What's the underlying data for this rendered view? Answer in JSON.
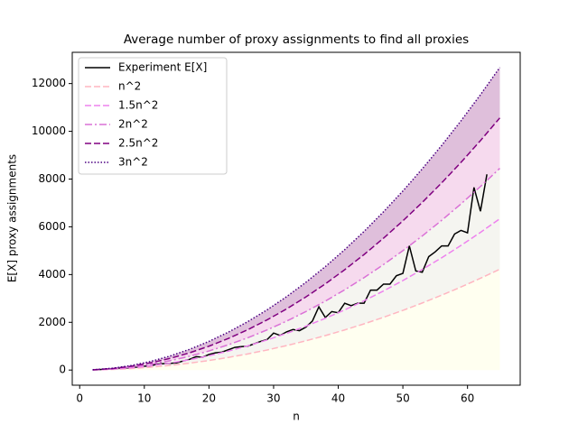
{
  "chart_data": {
    "type": "line",
    "title": "Average number of proxy assignments to find all proxies",
    "x_label": "n",
    "y_label": "E[X] proxy assignments",
    "xlim": [
      -1.15,
      68.15
    ],
    "xticks": [
      0,
      10,
      20,
      30,
      40,
      50,
      60
    ],
    "ylim": [
      -634,
      13309
    ],
    "yticks": [
      0,
      2000,
      4000,
      6000,
      8000,
      10000,
      12000
    ],
    "grid": true,
    "legend": "upper left",
    "series": [
      {
        "name": "Experiment E[X]",
        "color": "#000000",
        "linestyle": "solid",
        "x": [
          2,
          3,
          4,
          5,
          6,
          7,
          8,
          9,
          10,
          11,
          12,
          13,
          14,
          15,
          16,
          17,
          18,
          19,
          20,
          21,
          22,
          23,
          24,
          25,
          26,
          27,
          28,
          29,
          30,
          31,
          32,
          33,
          34,
          35,
          36,
          37,
          38,
          39,
          40,
          41,
          42,
          43,
          44,
          45,
          46,
          47,
          48,
          49,
          50,
          51,
          52,
          53,
          54,
          55,
          56,
          57,
          58,
          59,
          60,
          61,
          62,
          63
        ],
        "values": [
          10,
          20,
          40,
          50,
          70,
          90,
          100,
          130,
          160,
          180,
          250,
          270,
          280,
          300,
          380,
          450,
          560,
          540,
          650,
          720,
          750,
          850,
          950,
          980,
          1000,
          1100,
          1200,
          1280,
          1550,
          1450,
          1600,
          1700,
          1650,
          1800,
          2050,
          2650,
          2200,
          2450,
          2400,
          2800,
          2700,
          2800,
          2800,
          3350,
          3350,
          3600,
          3600,
          3950,
          4050,
          5200,
          4150,
          4100,
          4750,
          4950,
          5200,
          5200,
          5700,
          5850,
          5750,
          7650,
          6650,
          8200
        ]
      },
      {
        "name": "n^2",
        "color": "#ffb6c1",
        "linestyle": "dashed",
        "fill": "#fffff0",
        "x": [
          2,
          5,
          8,
          11,
          14,
          17,
          20,
          23,
          26,
          29,
          32,
          35,
          38,
          41,
          44,
          47,
          50,
          53,
          56,
          59,
          62,
          65
        ],
        "values": [
          4,
          25,
          64,
          121,
          196,
          289,
          400,
          529,
          676,
          841,
          1024,
          1225,
          1444,
          1681,
          1936,
          2209,
          2500,
          2809,
          3136,
          3481,
          3844,
          4225
        ]
      },
      {
        "name": "1.5n^2",
        "color": "#ee82ee",
        "linestyle": "dashed",
        "fill": "#f5f5f0",
        "x": [
          2,
          5,
          8,
          11,
          14,
          17,
          20,
          23,
          26,
          29,
          32,
          35,
          38,
          41,
          44,
          47,
          50,
          53,
          56,
          59,
          62,
          65
        ],
        "values": [
          6,
          37.5,
          96,
          181.5,
          294,
          433.5,
          600,
          793.5,
          1014,
          1261.5,
          1536,
          1837.5,
          2166,
          2521.5,
          2904,
          3313.5,
          3750,
          4213.5,
          4704,
          5221.5,
          5766,
          6337.5
        ]
      },
      {
        "name": "2n^2",
        "color": "#da70d6",
        "linestyle": "dashdot",
        "fill": "#f5f5f0",
        "x": [
          2,
          5,
          8,
          11,
          14,
          17,
          20,
          23,
          26,
          29,
          32,
          35,
          38,
          41,
          44,
          47,
          50,
          53,
          56,
          59,
          62,
          65
        ],
        "values": [
          8,
          50,
          128,
          242,
          392,
          578,
          800,
          1058,
          1352,
          1682,
          2048,
          2450,
          2888,
          3362,
          3872,
          4418,
          5000,
          5618,
          6272,
          6962,
          7688,
          8450
        ]
      },
      {
        "name": "2.5n^2",
        "color": "#800080",
        "linestyle": "dashed",
        "fill": "#f6daee",
        "x": [
          2,
          5,
          8,
          11,
          14,
          17,
          20,
          23,
          26,
          29,
          32,
          35,
          38,
          41,
          44,
          47,
          50,
          53,
          56,
          59,
          62,
          65
        ],
        "values": [
          10,
          62.5,
          160,
          302.5,
          490,
          722.5,
          1000,
          1322.5,
          1690,
          2102.5,
          2560,
          3062.5,
          3610,
          4202.5,
          4840,
          5522.5,
          6250,
          7022.5,
          7840,
          8702.5,
          9610,
          10562.5
        ]
      },
      {
        "name": "3n^2",
        "color": "#4b0082",
        "linestyle": "dotted",
        "fill": "#dfbfdb",
        "x": [
          2,
          5,
          8,
          11,
          14,
          17,
          20,
          23,
          26,
          29,
          32,
          35,
          38,
          41,
          44,
          47,
          50,
          53,
          56,
          59,
          62,
          65
        ],
        "values": [
          12,
          75,
          192,
          363,
          588,
          867,
          1200,
          1587,
          2028,
          2523,
          3072,
          3675,
          4332,
          5043,
          5808,
          6627,
          7500,
          8427,
          9408,
          10443,
          11532,
          12675
        ]
      }
    ]
  }
}
